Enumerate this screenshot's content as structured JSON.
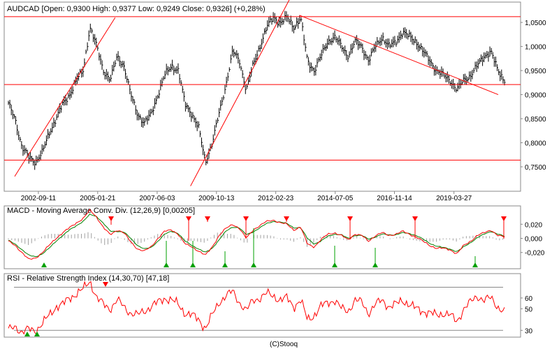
{
  "footer": {
    "credit": "(C)Stooq"
  },
  "colors": {
    "price": "#000000",
    "trend": "#ff0000",
    "macd": "#ff0000",
    "signal": "#008000",
    "hist": "#a0a0a0",
    "rsi": "#ff0000",
    "sell_marker": "#ff0000",
    "buy_marker": "#00a000",
    "bg": "#ffffff",
    "border": "#888888"
  },
  "chart_data": [
    {
      "type": "candlestick",
      "title": "AUDCAD [Open: 0,9300  High: 0,9377  Low: 0,9249  Close: 0,9326] (+0,28%)",
      "x_tick_labels": [
        "2002-09-11",
        "2005-01-21",
        "2007-06-03",
        "2009-10-13",
        "2012-02-23",
        "2014-07-05",
        "2016-11-14",
        "2019-03-27"
      ],
      "y_tick_labels": [
        "1,0500",
        "1,0000",
        "0,9500",
        "0,9000",
        "0,8500",
        "0,8000",
        "0,7500"
      ],
      "ylim": [
        0.705,
        1.085
      ],
      "close_series": [
        0.88,
        0.85,
        0.79,
        0.77,
        0.76,
        0.78,
        0.82,
        0.85,
        0.88,
        0.9,
        0.93,
        0.95,
        1.04,
        1.0,
        0.95,
        0.93,
        0.98,
        0.96,
        0.9,
        0.86,
        0.84,
        0.86,
        0.9,
        0.94,
        0.96,
        0.95,
        0.88,
        0.86,
        0.83,
        0.76,
        0.8,
        0.86,
        0.92,
        0.99,
        0.97,
        0.91,
        0.96,
        1.0,
        1.04,
        1.06,
        1.05,
        1.06,
        1.04,
        1.06,
        0.97,
        0.95,
        0.98,
        1.01,
        1.02,
        1.0,
        0.98,
        1.01,
        1.0,
        0.97,
        1.0,
        1.02,
        1.0,
        1.01,
        1.03,
        1.02,
        1.01,
        0.99,
        0.97,
        0.95,
        0.94,
        0.93,
        0.91,
        0.93,
        0.94,
        0.96,
        0.98,
        0.99,
        0.95,
        0.93
      ],
      "horizontal_lines": [
        1.062,
        0.921,
        0.764
      ],
      "trend_lines": [
        {
          "from": [
            "2001-10",
            0.73
          ],
          "to": [
            "2005-10",
            1.06
          ]
        },
        {
          "from": [
            "2008-10",
            0.71
          ],
          "to": [
            "2012-12",
            1.12
          ]
        },
        {
          "from": [
            "2013-02",
            1.065
          ],
          "to": [
            "2021-01",
            0.9
          ]
        }
      ]
    },
    {
      "type": "line",
      "title": "MACD - Moving Average Conv. Div. (12,26,9) [0,00205]",
      "y_tick_labels": [
        "0,020",
        "0,000",
        "-0,020"
      ],
      "ylim": [
        -0.041,
        0.041
      ],
      "series": [
        {
          "values": [
            -0.004,
            -0.01,
            -0.02,
            -0.03,
            -0.028,
            -0.02,
            -0.01,
            0.0,
            0.008,
            0.015,
            0.022,
            0.028,
            0.04,
            0.03,
            0.015,
            0.005,
            0.012,
            0.008,
            -0.005,
            -0.015,
            -0.018,
            -0.012,
            0.0,
            0.01,
            0.012,
            0.006,
            -0.008,
            -0.012,
            -0.018,
            -0.024,
            -0.012,
            0.004,
            0.014,
            0.02,
            0.014,
            0.0,
            0.012,
            0.018,
            0.024,
            0.026,
            0.022,
            0.02,
            0.012,
            0.016,
            -0.008,
            -0.012,
            -0.002,
            0.006,
            0.008,
            0.004,
            -0.002,
            0.006,
            0.004,
            -0.004,
            0.004,
            0.008,
            0.004,
            0.006,
            0.01,
            0.006,
            0.002,
            -0.004,
            -0.01,
            -0.014,
            -0.014,
            -0.016,
            -0.022,
            -0.01,
            -0.004,
            0.004,
            0.008,
            0.012,
            0.004,
            0.002
          ]
        },
        {
          "values": [
            -0.003,
            -0.008,
            -0.016,
            -0.024,
            -0.026,
            -0.022,
            -0.014,
            -0.004,
            0.004,
            0.012,
            0.018,
            0.024,
            0.034,
            0.031,
            0.021,
            0.01,
            0.01,
            0.009,
            0.0,
            -0.01,
            -0.015,
            -0.013,
            -0.004,
            0.006,
            0.01,
            0.007,
            -0.004,
            -0.01,
            -0.015,
            -0.02,
            -0.014,
            -0.002,
            0.01,
            0.016,
            0.015,
            0.005,
            0.009,
            0.015,
            0.021,
            0.024,
            0.023,
            0.021,
            0.015,
            0.015,
            0.0,
            -0.008,
            -0.004,
            0.003,
            0.006,
            0.005,
            0.0,
            0.004,
            0.004,
            -0.001,
            0.002,
            0.006,
            0.005,
            0.005,
            0.008,
            0.007,
            0.004,
            -0.001,
            -0.007,
            -0.011,
            -0.013,
            -0.015,
            -0.019,
            -0.012,
            -0.006,
            0.001,
            0.006,
            0.01,
            0.006,
            0.003
          ]
        }
      ],
      "sell_signals": [
        159,
        270,
        297,
        352,
        410,
        501,
        594,
        721
      ],
      "buy_signals": [
        63,
        238,
        276,
        322,
        363,
        479,
        537,
        680
      ]
    },
    {
      "type": "line",
      "title": "RSI - Relative Strength Index (14,30,70) [47,18]",
      "y_tick_labels": [
        "60",
        "50",
        "30"
      ],
      "ylim": [
        25,
        80
      ],
      "reference_lines": [
        70,
        30
      ],
      "series": [
        {
          "values": [
            30,
            34,
            28,
            31,
            30,
            36,
            44,
            52,
            54,
            60,
            64,
            68,
            76,
            60,
            54,
            50,
            58,
            52,
            46,
            44,
            48,
            52,
            56,
            60,
            58,
            54,
            46,
            44,
            40,
            32,
            44,
            56,
            62,
            66,
            56,
            48,
            58,
            60,
            64,
            62,
            58,
            60,
            52,
            58,
            40,
            44,
            52,
            56,
            58,
            50,
            48,
            58,
            56,
            46,
            54,
            58,
            52,
            54,
            58,
            54,
            50,
            48,
            46,
            44,
            46,
            44,
            38,
            50,
            56,
            62,
            58,
            60,
            52,
            47
          ]
        }
      ],
      "sell_signals": [
        151
      ],
      "buy_signals": [
        39,
        53
      ]
    }
  ]
}
